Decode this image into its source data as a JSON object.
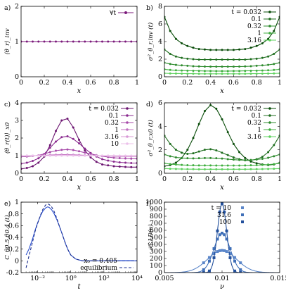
{
  "chart_data": [
    {
      "id": "a",
      "type": "line",
      "panel_label": "a)",
      "xlabel": "x",
      "ylabel": "⟨θ_r⟩_inv",
      "xlim": [
        0,
        1
      ],
      "ylim": [
        0,
        2
      ],
      "xticks": [
        0,
        0.2,
        0.4,
        0.6,
        0.8,
        1
      ],
      "yticks": [
        0,
        1,
        2
      ],
      "series": [
        {
          "name": "∀t",
          "color": "#7b1a7b",
          "x": [
            0,
            0.05,
            0.1,
            0.15,
            0.2,
            0.25,
            0.3,
            0.35,
            0.4,
            0.45,
            0.5,
            0.55,
            0.6,
            0.65,
            0.7,
            0.75,
            0.8,
            0.85,
            0.9,
            0.95,
            1.0
          ],
          "y": [
            1,
            1,
            1,
            1,
            1,
            1,
            1,
            1,
            1,
            1,
            1,
            1,
            1,
            1,
            1,
            1,
            1,
            1,
            1,
            1,
            1
          ]
        }
      ]
    },
    {
      "id": "b",
      "type": "line",
      "panel_label": "b)",
      "xlabel": "x",
      "ylabel": "σ²_θ_r,inv (t)",
      "xlim": [
        0,
        1
      ],
      "ylim": [
        0,
        8
      ],
      "xticks": [
        0,
        0.2,
        0.4,
        0.6,
        0.8,
        1
      ],
      "yticks": [
        0,
        2,
        4,
        6,
        8
      ],
      "legend_title": "t =",
      "series": [
        {
          "name": "0.032",
          "color": "#0a4d0a",
          "y": [
            6.8,
            5.2,
            4.3,
            3.8,
            3.5,
            3.3,
            3.15,
            3.1,
            3.05,
            3.05,
            3.05,
            3.05,
            3.05,
            3.1,
            3.15,
            3.3,
            3.5,
            3.8,
            4.3,
            5.2,
            6.8
          ]
        },
        {
          "name": "0.1",
          "color": "#1f6e1f",
          "y": [
            3.1,
            2.6,
            2.3,
            2.15,
            2.05,
            2.0,
            1.95,
            1.95,
            1.95,
            1.95,
            1.95,
            1.95,
            1.95,
            1.95,
            1.95,
            2.0,
            2.05,
            2.15,
            2.3,
            2.6,
            3.1
          ]
        },
        {
          "name": "0.32",
          "color": "#2e8b2e",
          "y": [
            1.6,
            1.45,
            1.35,
            1.3,
            1.25,
            1.2,
            1.18,
            1.16,
            1.15,
            1.15,
            1.15,
            1.15,
            1.15,
            1.16,
            1.18,
            1.2,
            1.25,
            1.3,
            1.35,
            1.45,
            1.6
          ]
        },
        {
          "name": "1",
          "color": "#3fae3f",
          "y": [
            0.85,
            0.78,
            0.74,
            0.71,
            0.69,
            0.68,
            0.67,
            0.66,
            0.66,
            0.65,
            0.65,
            0.65,
            0.66,
            0.66,
            0.67,
            0.68,
            0.69,
            0.71,
            0.74,
            0.78,
            0.85
          ]
        },
        {
          "name": "3.16",
          "color": "#5ed15e",
          "y": [
            0.4,
            0.38,
            0.37,
            0.36,
            0.35,
            0.35,
            0.34,
            0.34,
            0.34,
            0.34,
            0.34,
            0.34,
            0.34,
            0.34,
            0.34,
            0.35,
            0.35,
            0.36,
            0.37,
            0.38,
            0.4
          ]
        }
      ]
    },
    {
      "id": "c",
      "type": "line",
      "panel_label": "c)",
      "xlabel": "x",
      "ylabel": "⟨θ_r(t)⟩_x0",
      "xlim": [
        0,
        1
      ],
      "ylim": [
        0,
        4
      ],
      "xticks": [
        0,
        0.2,
        0.4,
        0.6,
        0.8,
        1
      ],
      "yticks": [
        0,
        1,
        2,
        3,
        4
      ],
      "legend_title": "t =",
      "series": [
        {
          "name": "0.032",
          "color": "#6b1470",
          "y": [
            0.25,
            0.3,
            0.4,
            0.6,
            0.95,
            1.6,
            2.4,
            3.0,
            3.1,
            2.6,
            1.9,
            1.3,
            0.9,
            0.65,
            0.5,
            0.45,
            0.4,
            0.38,
            0.36,
            0.35,
            0.35
          ]
        },
        {
          "name": "0.1",
          "color": "#8a2a8f",
          "y": [
            0.55,
            0.6,
            0.7,
            0.85,
            1.1,
            1.45,
            1.8,
            2.05,
            2.1,
            1.95,
            1.7,
            1.4,
            1.15,
            0.95,
            0.8,
            0.72,
            0.66,
            0.62,
            0.6,
            0.58,
            0.58
          ]
        },
        {
          "name": "0.32",
          "color": "#a74aa9",
          "y": [
            0.95,
            0.95,
            0.98,
            1.02,
            1.1,
            1.2,
            1.28,
            1.33,
            1.35,
            1.32,
            1.25,
            1.17,
            1.1,
            1.03,
            0.97,
            0.92,
            0.88,
            0.86,
            0.84,
            0.83,
            0.83
          ]
        },
        {
          "name": "1",
          "color": "#c270c1",
          "y": [
            1.0,
            1.0,
            1.0,
            1.01,
            1.02,
            1.04,
            1.05,
            1.06,
            1.06,
            1.05,
            1.04,
            1.02,
            1.01,
            1.0,
            0.99,
            0.98,
            0.97,
            0.96,
            0.96,
            0.96,
            0.96
          ]
        },
        {
          "name": "3.16",
          "color": "#d898d6",
          "y": [
            1.0,
            1.0,
            1.0,
            1.0,
            1.0,
            1.0,
            1.0,
            1.01,
            1.01,
            1.01,
            1.0,
            1.0,
            1.0,
            1.0,
            1.0,
            1.0,
            1.0,
            0.99,
            0.99,
            0.99,
            0.99
          ]
        },
        {
          "name": "10",
          "color": "#ecc0ea",
          "y": [
            1,
            1,
            1,
            1,
            1,
            1,
            1,
            1,
            1,
            1,
            1,
            1,
            1,
            1,
            1,
            1,
            1,
            1,
            1,
            1,
            1
          ]
        }
      ]
    },
    {
      "id": "d",
      "type": "line",
      "panel_label": "d)",
      "xlabel": "x",
      "ylabel": "σ²_θ_r,x0 (t)",
      "xlim": [
        0,
        1
      ],
      "ylim": [
        0,
        6
      ],
      "xticks": [
        0,
        0.2,
        0.4,
        0.6,
        0.8,
        1
      ],
      "yticks": [
        0,
        2,
        4,
        6
      ],
      "legend_title": "t =",
      "series": [
        {
          "name": "0.032",
          "color": "#0a4d0a",
          "y": [
            0.6,
            0.7,
            0.9,
            1.3,
            2.0,
            3.0,
            4.2,
            5.3,
            5.8,
            5.5,
            4.6,
            3.5,
            2.5,
            1.8,
            1.3,
            1.0,
            0.85,
            0.75,
            0.7,
            0.75,
            0.9
          ]
        },
        {
          "name": "0.1",
          "color": "#1f6e1f",
          "y": [
            3.2,
            2.5,
            2.0,
            1.75,
            1.65,
            1.7,
            1.85,
            2.0,
            2.05,
            1.95,
            1.75,
            1.55,
            1.35,
            1.2,
            1.1,
            1.1,
            1.2,
            1.4,
            1.8,
            2.4,
            3.2
          ]
        },
        {
          "name": "0.32",
          "color": "#2e8b2e",
          "y": [
            1.6,
            1.45,
            1.35,
            1.3,
            1.28,
            1.27,
            1.28,
            1.3,
            1.3,
            1.28,
            1.25,
            1.2,
            1.16,
            1.13,
            1.12,
            1.13,
            1.17,
            1.23,
            1.32,
            1.45,
            1.6
          ]
        },
        {
          "name": "1",
          "color": "#3fae3f",
          "y": [
            0.85,
            0.78,
            0.74,
            0.71,
            0.69,
            0.68,
            0.67,
            0.67,
            0.67,
            0.66,
            0.66,
            0.66,
            0.66,
            0.66,
            0.67,
            0.68,
            0.69,
            0.71,
            0.74,
            0.78,
            0.85
          ]
        },
        {
          "name": "3.16",
          "color": "#5ed15e",
          "y": [
            0.4,
            0.38,
            0.37,
            0.36,
            0.35,
            0.35,
            0.34,
            0.34,
            0.34,
            0.34,
            0.34,
            0.34,
            0.34,
            0.34,
            0.34,
            0.35,
            0.35,
            0.36,
            0.37,
            0.38,
            0.4
          ]
        }
      ]
    },
    {
      "id": "e",
      "type": "line",
      "panel_label": "e)",
      "xlabel": "t",
      "ylabel": "C_θ0.5,θ0.4 (t)",
      "xscale": "log",
      "xlim": [
        0.001,
        10000
      ],
      "ylim": [
        -0.2,
        1.0
      ],
      "xticks": [
        0.01,
        1,
        100,
        10000
      ],
      "xtick_labels": [
        "10⁻²",
        "10⁰",
        "10²",
        "10⁴"
      ],
      "yticks": [
        -0.2,
        0,
        0.2,
        0.4,
        0.6,
        0.8,
        1
      ],
      "ytick_labels": [
        "-0.2",
        "0",
        "0.2",
        "0.4",
        "0.6",
        "0.8",
        "1"
      ],
      "series": [
        {
          "name": "x₀ = 0.405",
          "style": "solid",
          "color": "#2a4fcf",
          "x": [
            0.002,
            0.003,
            0.005,
            0.007,
            0.01,
            0.015,
            0.02,
            0.03,
            0.04,
            0.05,
            0.07,
            0.1,
            0.15,
            0.2,
            0.3,
            0.5,
            0.7,
            1,
            2,
            5,
            10,
            100,
            1000,
            10000
          ],
          "y": [
            0.1,
            0.2,
            0.38,
            0.52,
            0.65,
            0.77,
            0.84,
            0.9,
            0.92,
            0.91,
            0.87,
            0.8,
            0.69,
            0.6,
            0.46,
            0.28,
            0.18,
            0.1,
            0.03,
            0.0,
            0.0,
            0.0,
            0.0,
            0.0
          ]
        },
        {
          "name": "equilibrium",
          "style": "dashed",
          "color": "#1b2f8f",
          "x": [
            0.002,
            0.003,
            0.005,
            0.007,
            0.01,
            0.015,
            0.02,
            0.03,
            0.04,
            0.05,
            0.07,
            0.1,
            0.15,
            0.2,
            0.3,
            0.5,
            0.7,
            1,
            2,
            5,
            10,
            100,
            1000,
            10000
          ],
          "y": [
            -0.12,
            0.08,
            0.33,
            0.5,
            0.64,
            0.78,
            0.87,
            0.95,
            0.97,
            0.96,
            0.92,
            0.84,
            0.71,
            0.6,
            0.46,
            0.28,
            0.18,
            0.1,
            0.03,
            0.0,
            0.0,
            0.0,
            0.0,
            0.0
          ]
        }
      ]
    },
    {
      "id": "f",
      "type": "line",
      "panel_label": "f)",
      "xlabel": "ν",
      "ylabel": "𝒫^LD(ν)",
      "xlim": [
        0.005,
        0.015
      ],
      "ylim": [
        0,
        1000
      ],
      "xticks": [
        0.005,
        0.01,
        0.015
      ],
      "xtick_labels": [
        "0.005",
        "0.01",
        "0.015"
      ],
      "yticks": [
        0,
        100,
        200,
        300,
        400,
        500,
        600,
        700,
        800,
        900,
        1000
      ],
      "legend_title": "t =",
      "series": [
        {
          "name": "10",
          "color": "#5b86c9",
          "mean": 0.01,
          "sd": 0.00125,
          "peak": 315
        },
        {
          "name": "31.6",
          "color": "#3f6fb8",
          "mean": 0.01,
          "sd": 0.0007,
          "peak": 560
        },
        {
          "name": "100",
          "color": "#23509c",
          "mean": 0.01,
          "sd": 0.0004,
          "peak": 975
        }
      ]
    }
  ]
}
